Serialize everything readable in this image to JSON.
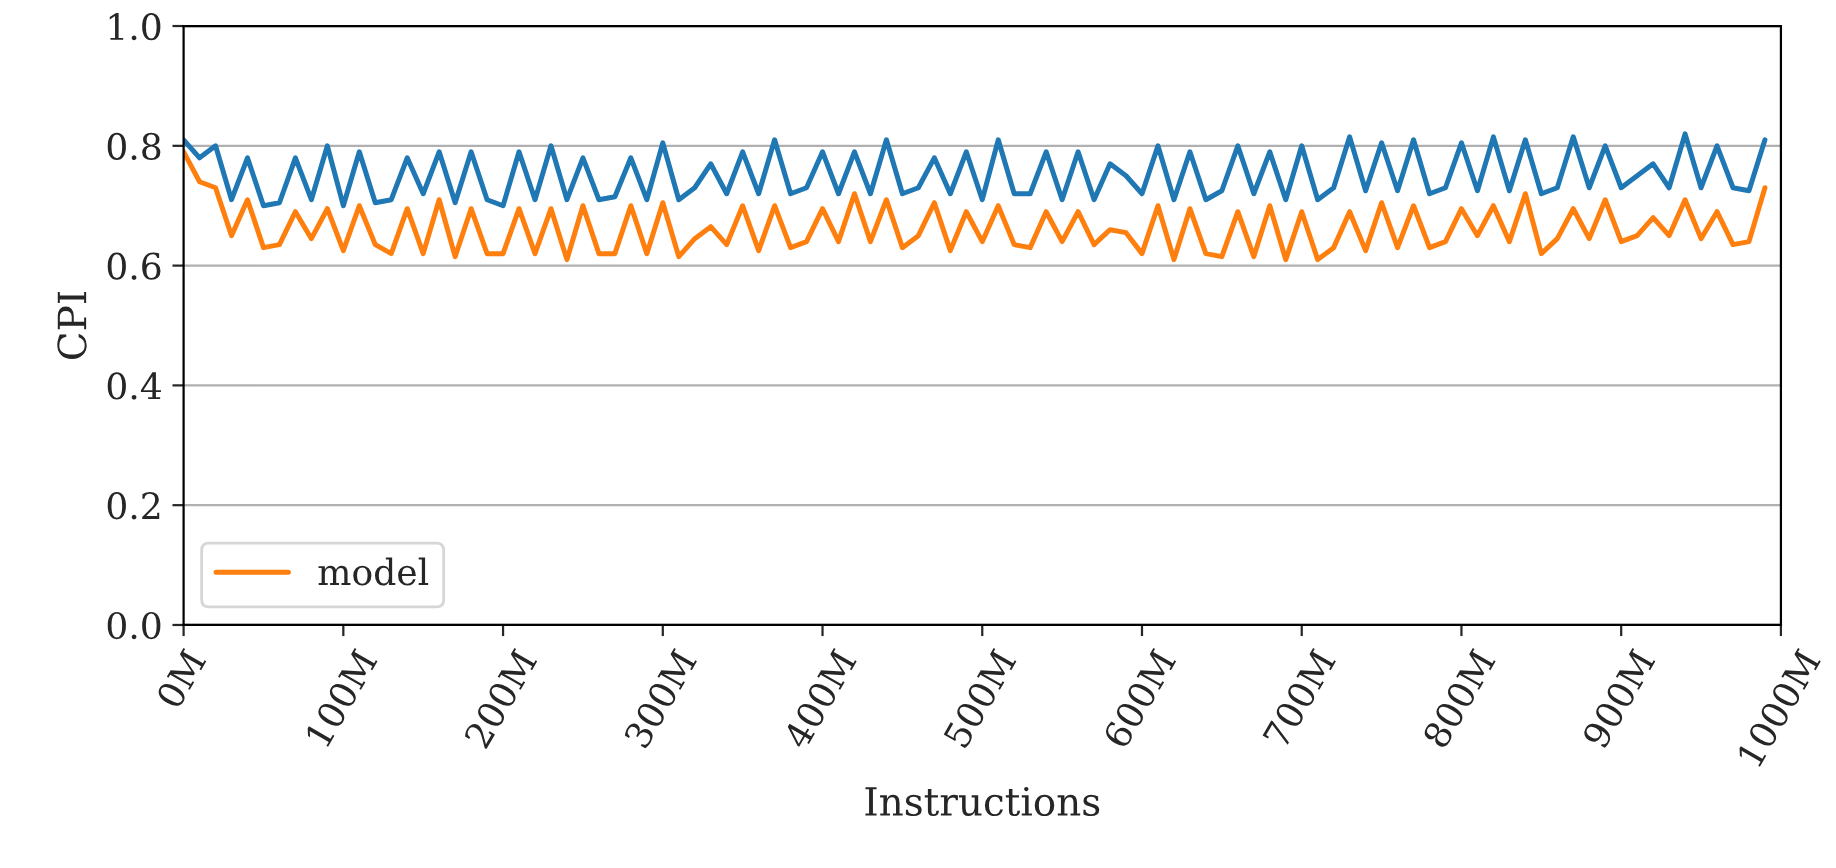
{
  "chart_data": {
    "type": "line",
    "xlabel": "Instructions",
    "ylabel": "CPI",
    "x": [
      0,
      10,
      20,
      30,
      40,
      50,
      60,
      70,
      80,
      90,
      100,
      110,
      120,
      130,
      140,
      150,
      160,
      170,
      180,
      190,
      200,
      210,
      220,
      230,
      240,
      250,
      260,
      270,
      280,
      290,
      300,
      310,
      320,
      330,
      340,
      350,
      360,
      370,
      380,
      390,
      400,
      410,
      420,
      430,
      440,
      450,
      460,
      470,
      480,
      490,
      500,
      510,
      520,
      530,
      540,
      550,
      560,
      570,
      580,
      590,
      600,
      610,
      620,
      630,
      640,
      650,
      660,
      670,
      680,
      690,
      700,
      710,
      720,
      730,
      740,
      750,
      760,
      770,
      780,
      790,
      800,
      810,
      820,
      830,
      840,
      850,
      860,
      870,
      880,
      890,
      900,
      910,
      920,
      930,
      940,
      950,
      960,
      970,
      980,
      990
    ],
    "series": [
      {
        "color": "#1f77b4",
        "values": [
          0.81,
          0.78,
          0.8,
          0.71,
          0.78,
          0.7,
          0.705,
          0.78,
          0.71,
          0.8,
          0.7,
          0.79,
          0.705,
          0.71,
          0.78,
          0.72,
          0.79,
          0.705,
          0.79,
          0.71,
          0.7,
          0.79,
          0.71,
          0.8,
          0.71,
          0.78,
          0.71,
          0.715,
          0.78,
          0.71,
          0.805,
          0.71,
          0.73,
          0.77,
          0.72,
          0.79,
          0.72,
          0.81,
          0.72,
          0.73,
          0.79,
          0.72,
          0.79,
          0.72,
          0.81,
          0.72,
          0.73,
          0.78,
          0.72,
          0.79,
          0.71,
          0.81,
          0.72,
          0.72,
          0.79,
          0.71,
          0.79,
          0.71,
          0.77,
          0.75,
          0.72,
          0.8,
          0.71,
          0.79,
          0.71,
          0.725,
          0.8,
          0.72,
          0.79,
          0.71,
          0.8,
          0.71,
          0.73,
          0.815,
          0.725,
          0.805,
          0.725,
          0.81,
          0.72,
          0.73,
          0.805,
          0.725,
          0.815,
          0.725,
          0.81,
          0.72,
          0.73,
          0.815,
          0.73,
          0.8,
          0.73,
          0.75,
          0.77,
          0.73,
          0.82,
          0.73,
          0.8,
          0.73,
          0.725,
          0.81
        ]
      },
      {
        "name": "model",
        "color": "#ff7f0e",
        "values": [
          0.79,
          0.74,
          0.73,
          0.65,
          0.71,
          0.63,
          0.635,
          0.69,
          0.645,
          0.695,
          0.625,
          0.7,
          0.635,
          0.62,
          0.695,
          0.62,
          0.71,
          0.615,
          0.695,
          0.62,
          0.62,
          0.695,
          0.62,
          0.695,
          0.61,
          0.7,
          0.62,
          0.62,
          0.7,
          0.62,
          0.705,
          0.615,
          0.645,
          0.665,
          0.635,
          0.7,
          0.625,
          0.7,
          0.63,
          0.64,
          0.695,
          0.64,
          0.72,
          0.64,
          0.71,
          0.63,
          0.65,
          0.705,
          0.625,
          0.69,
          0.64,
          0.7,
          0.635,
          0.63,
          0.69,
          0.64,
          0.69,
          0.635,
          0.66,
          0.655,
          0.62,
          0.7,
          0.61,
          0.695,
          0.62,
          0.615,
          0.69,
          0.615,
          0.7,
          0.61,
          0.69,
          0.61,
          0.63,
          0.69,
          0.625,
          0.705,
          0.63,
          0.7,
          0.63,
          0.64,
          0.695,
          0.65,
          0.7,
          0.64,
          0.72,
          0.62,
          0.645,
          0.695,
          0.645,
          0.71,
          0.64,
          0.65,
          0.68,
          0.65,
          0.71,
          0.645,
          0.69,
          0.635,
          0.64,
          0.73
        ]
      }
    ],
    "xlim": [
      0,
      1000
    ],
    "xticks": [
      {
        "value": 0,
        "label": "0M"
      },
      {
        "value": 100,
        "label": "100M"
      },
      {
        "value": 200,
        "label": "200M"
      },
      {
        "value": 300,
        "label": "300M"
      },
      {
        "value": 400,
        "label": "400M"
      },
      {
        "value": 500,
        "label": "500M"
      },
      {
        "value": 600,
        "label": "600M"
      },
      {
        "value": 700,
        "label": "700M"
      },
      {
        "value": 800,
        "label": "800M"
      },
      {
        "value": 900,
        "label": "900M"
      },
      {
        "value": 1000,
        "label": "1000M"
      }
    ],
    "ylim": [
      0,
      1
    ],
    "yticks": [
      {
        "value": 0,
        "label": "0.0"
      },
      0.2,
      0.4,
      0.6,
      0.8,
      {
        "value": 1,
        "label": "1.0"
      }
    ],
    "grid": "y",
    "legend": "bottom left",
    "marker": "none",
    "line_style": "solid"
  }
}
